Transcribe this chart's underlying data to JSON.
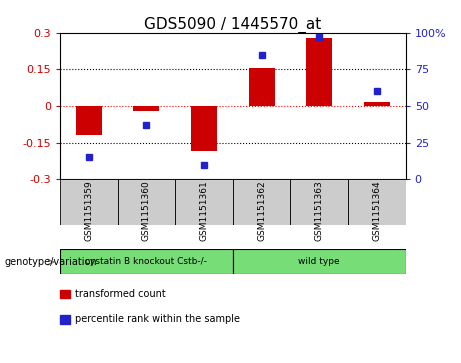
{
  "title": "GDS5090 / 1445570_at",
  "samples": [
    "GSM1151359",
    "GSM1151360",
    "GSM1151361",
    "GSM1151362",
    "GSM1151363",
    "GSM1151364"
  ],
  "bar_values": [
    -0.12,
    -0.02,
    -0.185,
    0.155,
    0.28,
    0.018
  ],
  "dot_values": [
    15,
    37,
    10,
    85,
    97,
    60
  ],
  "bar_color": "#cc0000",
  "dot_color": "#2222cc",
  "ylim_left": [
    -0.3,
    0.3
  ],
  "ylim_right": [
    0,
    100
  ],
  "yticks_left": [
    -0.3,
    -0.15,
    0,
    0.15,
    0.3
  ],
  "yticks_right": [
    0,
    25,
    50,
    75,
    100
  ],
  "ytick_labels_left": [
    "-0.3",
    "-0.15",
    "0",
    "0.15",
    "0.3"
  ],
  "ytick_labels_right": [
    "0",
    "25",
    "50",
    "75",
    "100%"
  ],
  "hline_y": [
    -0.15,
    0,
    0.15
  ],
  "hline_styles": [
    "dotted",
    "dotted",
    "dotted"
  ],
  "hline_colors": [
    "black",
    "red",
    "black"
  ],
  "group1_label": "cystatin B knockout Cstb-/-",
  "group2_label": "wild type",
  "group_color": "#77dd77",
  "sample_box_color": "#cccccc",
  "group_row_label": "genotype/variation",
  "legend_items": [
    {
      "label": "transformed count",
      "color": "#cc0000"
    },
    {
      "label": "percentile rank within the sample",
      "color": "#2222cc"
    }
  ],
  "bar_width": 0.45,
  "background_color": "#ffffff",
  "title_fontsize": 11,
  "tick_fontsize": 8,
  "label_fontsize": 7
}
